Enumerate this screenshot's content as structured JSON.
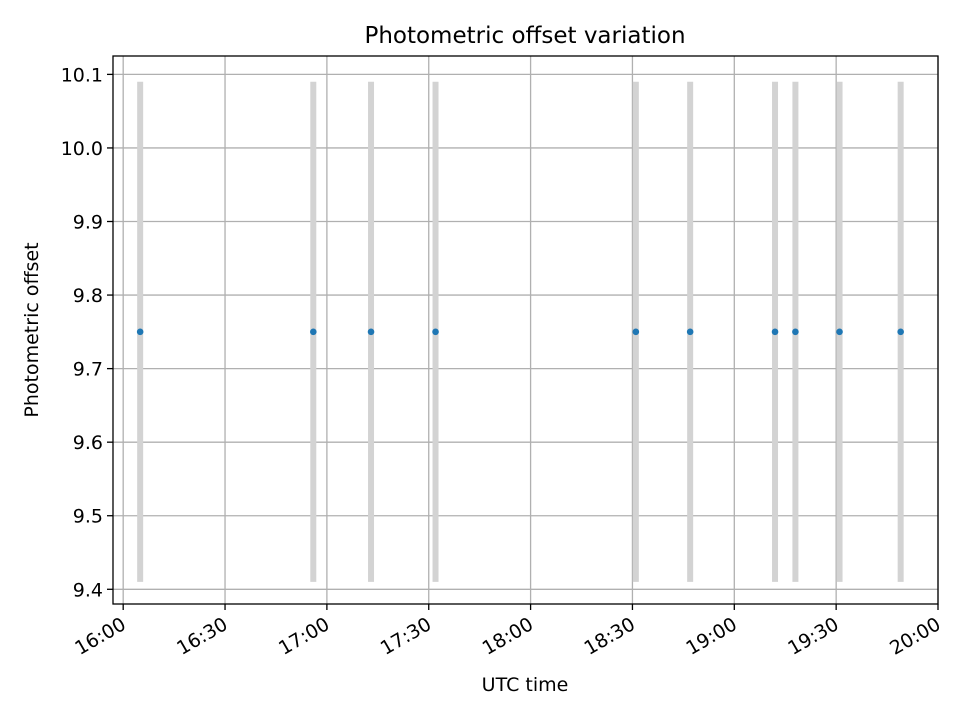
{
  "chart_data": {
    "type": "scatter",
    "title": "Photometric offset variation",
    "xlabel": "UTC time",
    "ylabel": "Photometric offset",
    "grid": true,
    "x_ticks": [
      "16:00",
      "16:30",
      "17:00",
      "17:30",
      "18:00",
      "18:30",
      "19:00",
      "19:30",
      "20:00"
    ],
    "y_ticks": [
      "9.4",
      "9.5",
      "9.6",
      "9.7",
      "9.8",
      "9.9",
      "10.0",
      "10.1"
    ],
    "xlim": [
      "15:57",
      "20:00"
    ],
    "ylim": [
      9.38,
      10.125
    ],
    "points": [
      {
        "x": "16:05",
        "y": 9.75
      },
      {
        "x": "16:56",
        "y": 9.75
      },
      {
        "x": "17:13",
        "y": 9.75
      },
      {
        "x": "17:32",
        "y": 9.75
      },
      {
        "x": "18:31",
        "y": 9.75
      },
      {
        "x": "18:47",
        "y": 9.75
      },
      {
        "x": "19:12",
        "y": 9.75
      },
      {
        "x": "19:18",
        "y": 9.75
      },
      {
        "x": "19:31",
        "y": 9.75
      },
      {
        "x": "19:49",
        "y": 9.75
      }
    ],
    "error_bars": {
      "low": 9.41,
      "high": 10.09
    },
    "colors": {
      "points": "#1f77b4",
      "error_bars": "#d3d3d3",
      "grid": "#b0b0b0"
    }
  }
}
